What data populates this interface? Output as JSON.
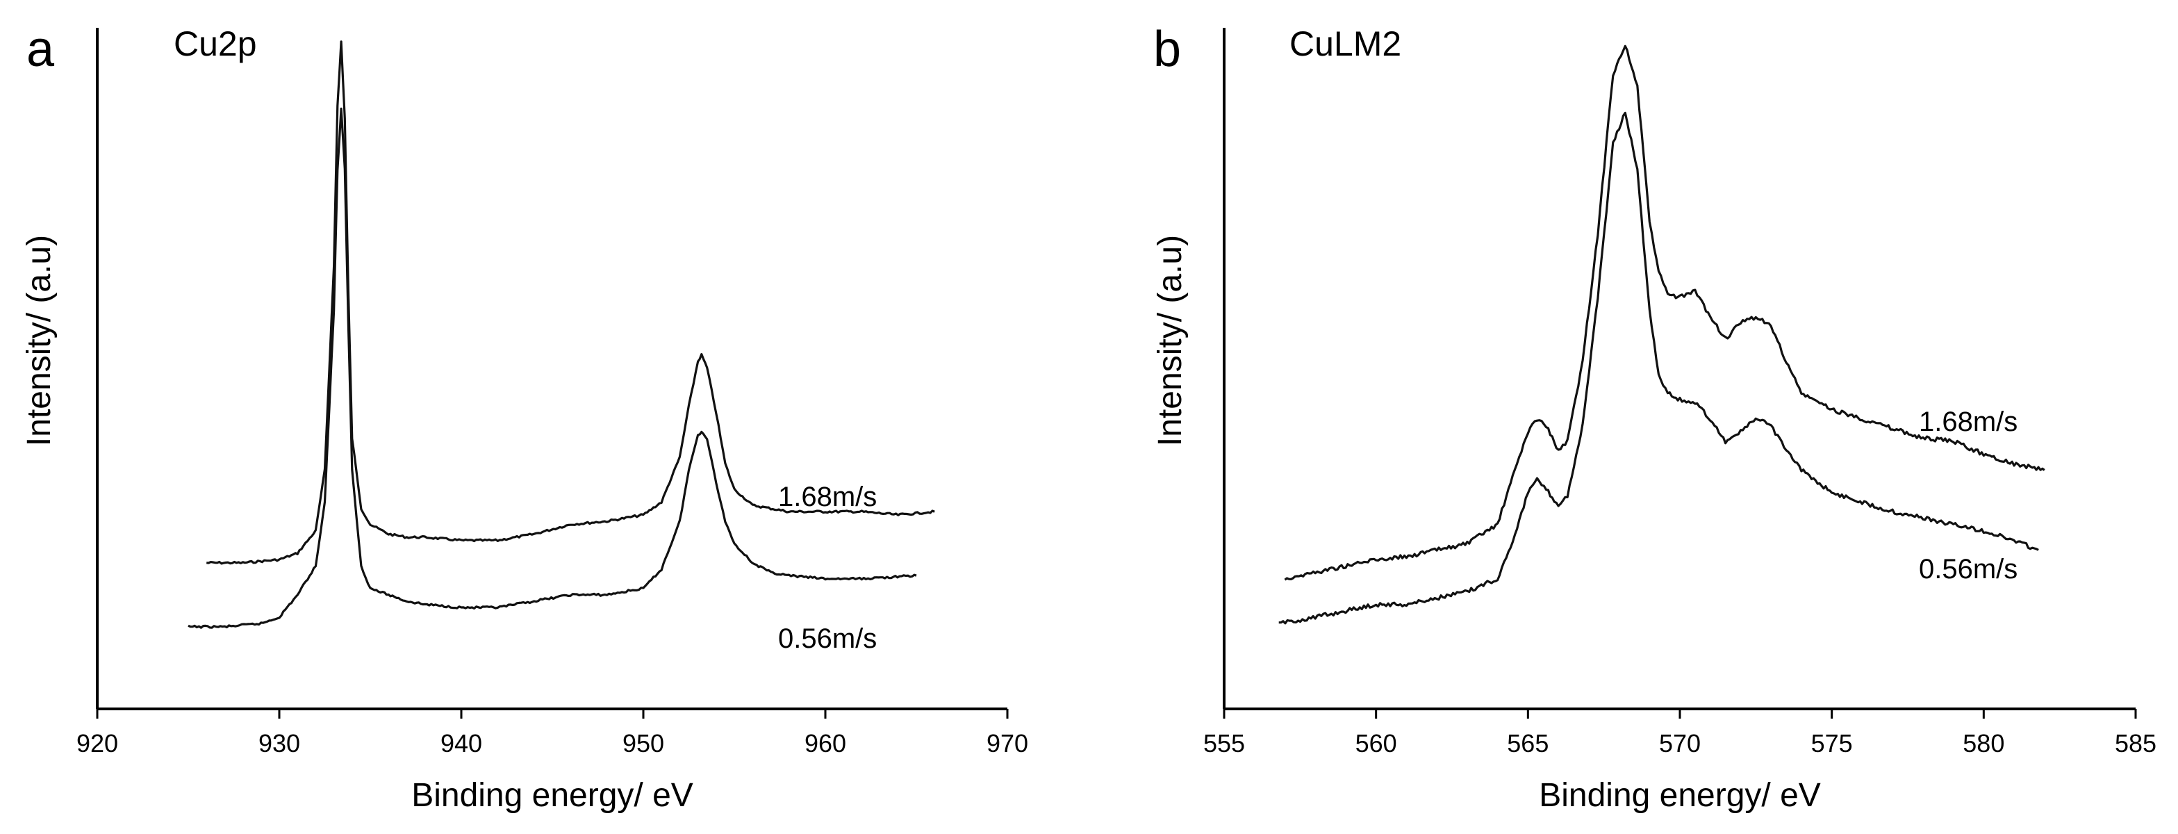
{
  "chart_data": [
    {
      "type": "line",
      "panel_letter": "a",
      "title": "Cu2p",
      "xlabel": "Binding energy/ eV",
      "ylabel": "Intensity/ (a.u)",
      "xlim": [
        920,
        970
      ],
      "ylim": [
        0,
        100
      ],
      "xticks": [
        920,
        930,
        940,
        950,
        960,
        970
      ],
      "yticks_shown": false,
      "grid": false,
      "series": [
        {
          "name": "1.68m/s",
          "x": [
            926,
            928,
            930,
            931,
            932,
            932.5,
            933,
            933.2,
            933.4,
            933.6,
            933.8,
            934,
            934.5,
            935,
            936,
            937,
            938,
            940,
            942,
            944,
            946,
            948,
            950,
            951,
            952,
            952.5,
            953,
            953.2,
            953.5,
            954,
            954.5,
            955,
            956,
            957,
            958,
            960,
            962,
            964,
            966
          ],
          "values": [
            18.5,
            18.5,
            19,
            20,
            23.5,
            33,
            65,
            90,
            100,
            88,
            60,
            38,
            27,
            24.5,
            23,
            22.5,
            22.5,
            22,
            22,
            23,
            24.5,
            25,
            26,
            28,
            35,
            43,
            50,
            51,
            49,
            42,
            34,
            30,
            27.5,
            27,
            26.5,
            26.5,
            26.5,
            26,
            26.5
          ]
        },
        {
          "name": "0.56m/s",
          "x": [
            925,
            927,
            929,
            930,
            931,
            932,
            932.5,
            933,
            933.2,
            933.4,
            933.6,
            933.8,
            934,
            934.5,
            935,
            936,
            937,
            938,
            940,
            942,
            944,
            946,
            948,
            950,
            951,
            952,
            952.5,
            953,
            953.2,
            953.5,
            954,
            954.5,
            955,
            956,
            957,
            958,
            960,
            962,
            965
          ],
          "values": [
            8.5,
            8.5,
            9,
            10,
            13.5,
            18,
            28,
            58,
            80,
            89.5,
            80,
            55,
            33,
            18,
            14.5,
            13.5,
            12.5,
            12,
            11.5,
            11.5,
            12.5,
            13.5,
            13.5,
            14.5,
            17.5,
            25,
            33,
            38.5,
            39,
            38,
            31,
            25,
            21.5,
            18.5,
            17,
            16.5,
            16,
            16,
            16.5
          ]
        }
      ]
    },
    {
      "type": "line",
      "panel_letter": "b",
      "title": "CuLM2",
      "xlabel": "Binding energy/ eV",
      "ylabel": "Intensity/ (a.u)",
      "xlim": [
        555,
        585
      ],
      "ylim": [
        0,
        100
      ],
      "xticks": [
        555,
        560,
        565,
        570,
        575,
        580,
        585
      ],
      "yticks_shown": false,
      "grid": false,
      "series": [
        {
          "name": "1.68m/s",
          "x": [
            557,
            558,
            559,
            560,
            561,
            562,
            563,
            564,
            564.5,
            565,
            565.3,
            565.6,
            566,
            566.3,
            566.8,
            567.3,
            567.8,
            568.2,
            568.6,
            569,
            569.3,
            569.6,
            570,
            570.5,
            571,
            571.5,
            572,
            572.5,
            573,
            573.5,
            574,
            575,
            576,
            577,
            578,
            579,
            580,
            581,
            582
          ],
          "values": [
            16,
            17,
            18,
            19,
            19.5,
            20.5,
            21.5,
            24.5,
            32,
            39,
            41,
            40,
            36,
            37.5,
            50,
            70,
            95,
            99.5,
            93,
            72,
            64,
            60.5,
            60,
            61,
            57,
            53.5,
            56,
            57,
            55.5,
            50,
            45,
            42.5,
            41,
            39.5,
            38,
            37.5,
            35.5,
            34,
            33
          ]
        },
        {
          "name": "0.56m/s",
          "x": [
            556.8,
            558,
            559,
            560,
            561,
            562,
            563,
            564,
            564.5,
            565,
            565.3,
            565.6,
            566,
            566.3,
            566.8,
            567.3,
            567.8,
            568.2,
            568.6,
            569,
            569.3,
            569.6,
            570,
            570.5,
            571,
            571.5,
            572,
            572.5,
            573,
            573.5,
            574,
            575,
            576,
            577,
            578,
            579,
            580,
            581,
            581.8
          ],
          "values": [
            9,
            10,
            11,
            12,
            12,
            13,
            14,
            16,
            22,
            29.5,
            31.5,
            30,
            27.5,
            29,
            40,
            60,
            84,
            89,
            80,
            58,
            48,
            45,
            44,
            43.5,
            41,
            37.5,
            39,
            41,
            40,
            36,
            33,
            29.5,
            28,
            26.5,
            25.5,
            24.5,
            23.5,
            22,
            20.5
          ]
        }
      ]
    }
  ]
}
